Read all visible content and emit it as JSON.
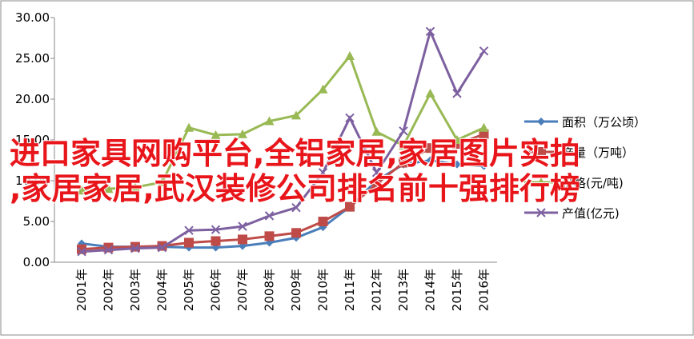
{
  "chart_data": {
    "type": "line",
    "categories": [
      "2001年",
      "2002年",
      "2003年",
      "2004年",
      "2005年",
      "2006年",
      "2007年",
      "2008年",
      "2009年",
      "2010年",
      "2011年",
      "2012年",
      "2013年",
      "2014年",
      "2015年",
      "2016年"
    ],
    "series": [
      {
        "name": "面积（万公顷）",
        "color": "#4a7ebb",
        "marker": "diamond",
        "values": [
          2.3,
          1.9,
          1.9,
          1.9,
          1.8,
          1.8,
          2.0,
          2.4,
          3.0,
          4.3,
          6.8,
          10.0,
          12.0,
          12.5,
          12.0,
          11.8
        ]
      },
      {
        "name": "产量（万吨）",
        "color": "#be4b48",
        "marker": "square",
        "values": [
          1.6,
          1.8,
          1.9,
          2.0,
          2.4,
          2.6,
          2.8,
          3.2,
          3.6,
          5.0,
          6.8,
          9.6,
          12.2,
          14.0,
          14.5,
          15.7
        ]
      },
      {
        "name": "价格(元/吨)",
        "color": "#98b954",
        "marker": "triangle",
        "values": [
          8.8,
          9.0,
          9.2,
          9.8,
          16.5,
          15.6,
          15.7,
          17.3,
          18.0,
          21.2,
          25.3,
          16.0,
          14.3,
          20.7,
          15.0,
          16.5
        ]
      },
      {
        "name": "产值(亿元)",
        "color": "#7d60a0",
        "marker": "x",
        "values": [
          1.3,
          1.5,
          1.7,
          1.8,
          3.9,
          4.0,
          4.4,
          5.7,
          6.7,
          11.0,
          17.7,
          11.0,
          16.1,
          28.3,
          20.7,
          25.9
        ]
      }
    ],
    "ylim": [
      0,
      30
    ],
    "yticks": [
      {
        "value": 0,
        "label": "0.00"
      },
      {
        "value": 5,
        "label": "5.00"
      },
      {
        "value": 10,
        "label": "10.00"
      },
      {
        "value": 15,
        "label": "15.00"
      },
      {
        "value": 20,
        "label": "20.00"
      },
      {
        "value": 25,
        "label": "25.00"
      },
      {
        "value": 30,
        "label": "30.00"
      }
    ]
  },
  "overlay": [
    "进口家具网购平台,全铝家居,家居图片实拍",
    ",家居家居,武汉装修公司排名前十强排行榜"
  ]
}
